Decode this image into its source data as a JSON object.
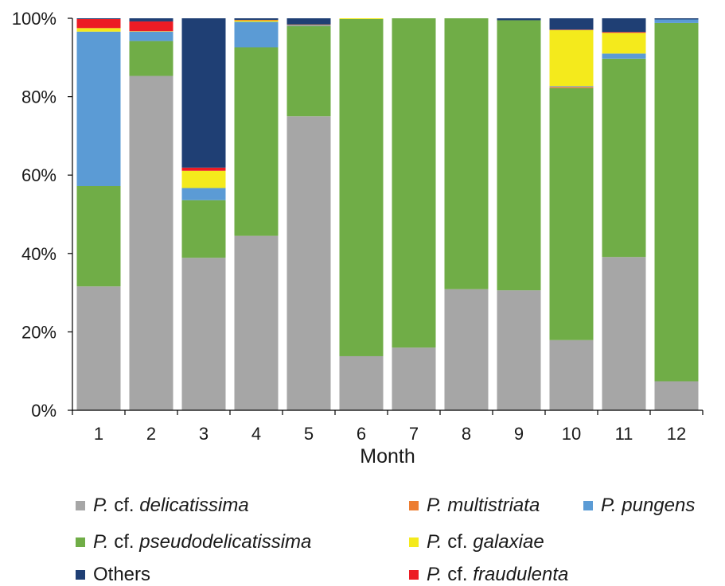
{
  "chart_data": {
    "type": "bar",
    "stacked": true,
    "percent": true,
    "xlabel": "Month",
    "categories": [
      "1",
      "2",
      "3",
      "4",
      "5",
      "6",
      "7",
      "8",
      "9",
      "10",
      "11",
      "12"
    ],
    "y_ticks": [
      "0%",
      "20%",
      "40%",
      "60%",
      "80%",
      "100%"
    ],
    "ylim": [
      0,
      100
    ],
    "grid": false,
    "legend_placement": "bottom",
    "series": [
      {
        "name": "P. cf. delicatissima",
        "color": "#a6a6a6",
        "values": [
          31.6,
          85.3,
          38.9,
          44.5,
          75.0,
          13.8,
          16.0,
          30.9,
          30.6,
          17.9,
          39.1,
          7.4
        ]
      },
      {
        "name": "P. cf. pseudodelicatissima",
        "color": "#70ad47",
        "values": [
          25.6,
          8.9,
          14.7,
          48.1,
          23.0,
          86.0,
          84.0,
          69.1,
          68.9,
          64.3,
          50.6,
          91.4
        ]
      },
      {
        "name": "P. multistriata",
        "color": "#ed7d31",
        "values": [
          0,
          0,
          0,
          0,
          0,
          0,
          0,
          0,
          0,
          0.3,
          0,
          0
        ]
      },
      {
        "name": "P. pungens",
        "color": "#5b9bd5",
        "values": [
          39.4,
          2.4,
          3.1,
          6.5,
          0.2,
          0,
          0,
          0,
          0,
          0.2,
          1.3,
          0.9
        ]
      },
      {
        "name": "P. cf. galaxiae",
        "color": "#f4ea1c",
        "values": [
          0.9,
          0.1,
          4.4,
          0.4,
          0.1,
          0.2,
          0,
          0,
          0,
          14.3,
          5.3,
          0
        ]
      },
      {
        "name": "P. cf. fraudulenta",
        "color": "#ec1c24",
        "values": [
          2.3,
          2.5,
          0.8,
          0.1,
          0.1,
          0,
          0,
          0,
          0,
          0.1,
          0.2,
          0
        ]
      },
      {
        "name": "Others",
        "color": "#1f3f74",
        "values": [
          0.2,
          0.8,
          38.1,
          0.4,
          1.6,
          0,
          0,
          0,
          0.5,
          2.9,
          3.5,
          0.3
        ]
      }
    ]
  },
  "legend": [
    {
      "prefix": "P.",
      "cf": "cf.",
      "italic": "delicatissima",
      "color": "#a6a6a6"
    },
    {
      "prefix": "P.",
      "cf": "",
      "italic": "multistriata",
      "color": "#ed7d31"
    },
    {
      "prefix": "P.",
      "cf": "",
      "italic": "pungens",
      "color": "#5b9bd5"
    },
    {
      "prefix": "P.",
      "cf": "cf.",
      "italic": "pseudodelicatissima",
      "color": "#70ad47"
    },
    {
      "prefix": "P.",
      "cf": "cf.",
      "italic": "galaxiae",
      "color": "#f4ea1c"
    },
    {
      "prefix": "",
      "cf": "Others",
      "italic": "",
      "color": "#1f3f74"
    },
    {
      "prefix": "P.",
      "cf": "cf.",
      "italic": "fraudulenta",
      "color": "#ec1c24"
    }
  ]
}
